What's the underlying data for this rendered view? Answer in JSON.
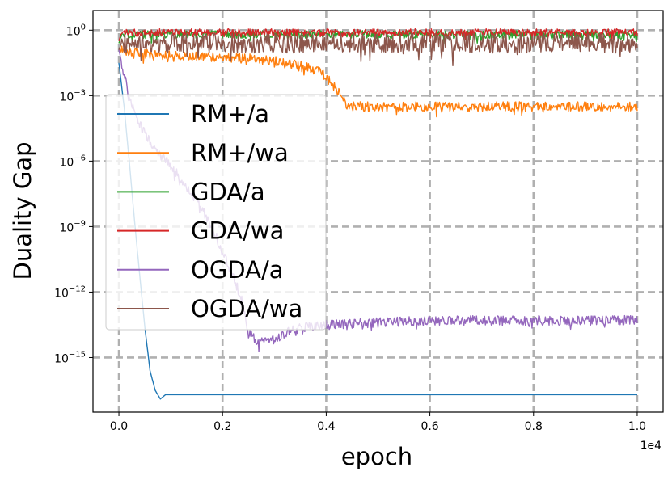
{
  "chart_data": {
    "type": "line",
    "title": "",
    "xlabel": "epoch",
    "ylabel": "Duality Gap",
    "x_scale_label": "1e4",
    "x_scale_factor": 10000,
    "xlim": [
      -0.05,
      1.05
    ],
    "xticks": [
      0.0,
      0.2,
      0.4,
      0.6,
      0.8,
      1.0
    ],
    "xtick_labels": [
      "0.0",
      "0.2",
      "0.4",
      "0.6",
      "0.8",
      "1.0"
    ],
    "y_scale": "log",
    "ylim_log10": [
      -17.5,
      0.9
    ],
    "yticks_log10": [
      0,
      -3,
      -6,
      -9,
      -12,
      -15
    ],
    "ytick_labels": [
      {
        "base": "10",
        "exp": "0"
      },
      {
        "base": "10",
        "exp": "−3"
      },
      {
        "base": "10",
        "exp": "−6"
      },
      {
        "base": "10",
        "exp": "−9"
      },
      {
        "base": "10",
        "exp": "−12"
      },
      {
        "base": "10",
        "exp": "−15"
      }
    ],
    "grid": true,
    "legend_position": "left",
    "series": [
      {
        "name": "RM+/a",
        "color": "#1f77b4",
        "x": [
          0.0,
          0.01,
          0.02,
          0.03,
          0.04,
          0.05,
          0.06,
          0.07,
          0.08,
          0.09,
          1.0
        ],
        "log10_y": [
          -1.5,
          -3.5,
          -6.0,
          -8.7,
          -11.2,
          -13.6,
          -15.6,
          -16.5,
          -16.9,
          -16.7,
          -16.7
        ],
        "noise": 0
      },
      {
        "name": "RM+/wa",
        "color": "#ff7f0e",
        "x": [
          0.0,
          0.05,
          0.1,
          0.15,
          0.2,
          0.25,
          0.3,
          0.35,
          0.39,
          0.42,
          0.44,
          0.45,
          0.5,
          0.6,
          0.7,
          0.8,
          0.9,
          1.0
        ],
        "log10_y": [
          -0.9,
          -1.1,
          -1.15,
          -1.2,
          -1.25,
          -1.3,
          -1.4,
          -1.6,
          -1.9,
          -2.7,
          -3.4,
          -3.5,
          -3.5,
          -3.5,
          -3.5,
          -3.5,
          -3.5,
          -3.5
        ],
        "noise": 0.22
      },
      {
        "name": "GDA/a",
        "color": "#2ca02c",
        "x": [
          0.0,
          0.005,
          1.0
        ],
        "log10_y": [
          -0.6,
          -0.2,
          -0.2
        ],
        "noise": 0.18
      },
      {
        "name": "GDA/wa",
        "color": "#d62728",
        "x": [
          0.0,
          0.005,
          1.0
        ],
        "log10_y": [
          -0.5,
          -0.1,
          -0.1
        ],
        "noise": 0.16
      },
      {
        "name": "OGDA/a",
        "color": "#9467bd",
        "x": [
          0.0,
          0.01,
          0.02,
          0.04,
          0.06,
          0.08,
          0.1,
          0.12,
          0.15,
          0.18,
          0.2,
          0.22,
          0.24,
          0.25,
          0.27,
          0.3,
          0.33,
          0.36,
          0.4,
          0.5,
          0.6,
          0.7,
          0.8,
          0.9,
          1.0
        ],
        "log10_y": [
          -0.9,
          -2.0,
          -3.2,
          -4.3,
          -5.1,
          -5.7,
          -6.2,
          -6.8,
          -7.8,
          -9.0,
          -10.2,
          -11.2,
          -12.6,
          -13.8,
          -14.3,
          -14.2,
          -13.8,
          -13.6,
          -13.5,
          -13.4,
          -13.3,
          -13.3,
          -13.3,
          -13.3,
          -13.3
        ],
        "noise": 0.22
      },
      {
        "name": "OGDA/wa",
        "color": "#8c564b",
        "x": [
          0.0,
          0.005,
          1.0
        ],
        "log10_y": [
          -0.9,
          -0.6,
          -0.6
        ],
        "noise": 0.45
      }
    ]
  }
}
